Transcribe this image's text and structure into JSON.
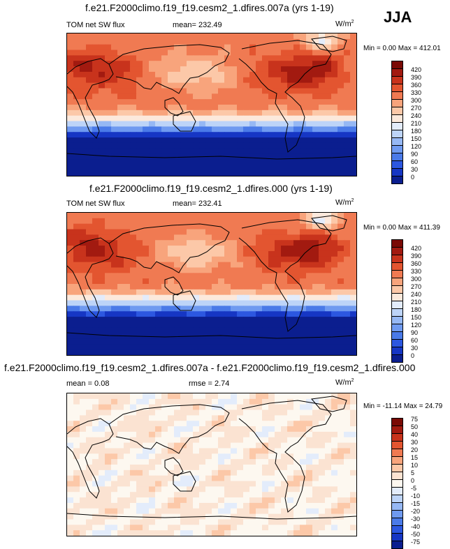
{
  "season": "JJA",
  "panels": [
    {
      "title": "f.e21.F2000climo.f19_f19.cesm2_1.dfires.007a (yrs 1-19)",
      "left": "TOM net SW flux",
      "center": "mean= 232.49",
      "units": "W/m",
      "units_sup": "2",
      "minmax": "Min =   0.00 Max = 412.01"
    },
    {
      "title": "f.e21.F2000climo.f19_f19.cesm2_1.dfires.000 (yrs 1-19)",
      "left": "TOM net SW flux",
      "center": "mean= 232.41",
      "units": "W/m",
      "units_sup": "2",
      "minmax": "Min =   0.00 Max = 411.39"
    },
    {
      "title": "f.e21.F2000climo.f19_f19.cesm2_1.dfires.007a - f.e21.F2000climo.f19_f19.cesm2_1.dfires.000",
      "left": "mean =   0.08",
      "center": "rmse =   2.74",
      "units": "W/m",
      "units_sup": "2",
      "minmax": "Min = -11.14 Max =  24.79"
    }
  ],
  "chart_data": [
    {
      "type": "heatmap",
      "title": "f.e21.F2000climo.f19_f19.cesm2_1.dfires.007a (yrs 1-19)",
      "variable": "TOM net SW flux",
      "units": "W/m2",
      "mean": 232.49,
      "min": 0.0,
      "max": 412.01,
      "colorbar_levels": [
        0,
        30,
        60,
        90,
        120,
        150,
        180,
        210,
        240,
        270,
        300,
        330,
        360,
        390,
        420
      ],
      "colors": [
        "#0b1e8f",
        "#1636c4",
        "#2c57e0",
        "#4a7ae8",
        "#6f9af0",
        "#96b8f4",
        "#bdd4f8",
        "#e3ecfb",
        "#fce9dc",
        "#fcc8a8",
        "#f8a47c",
        "#f07a52",
        "#e35530",
        "#c8331c",
        "#a21a10",
        "#7a0a05"
      ]
    },
    {
      "type": "heatmap",
      "title": "f.e21.F2000climo.f19_f19.cesm2_1.dfires.000 (yrs 1-19)",
      "variable": "TOM net SW flux",
      "units": "W/m2",
      "mean": 232.41,
      "min": 0.0,
      "max": 411.39,
      "colorbar_levels": [
        0,
        30,
        60,
        90,
        120,
        150,
        180,
        210,
        240,
        270,
        300,
        330,
        360,
        390,
        420
      ],
      "colors": [
        "#0b1e8f",
        "#1636c4",
        "#2c57e0",
        "#4a7ae8",
        "#6f9af0",
        "#96b8f4",
        "#bdd4f8",
        "#e3ecfb",
        "#fce9dc",
        "#fcc8a8",
        "#f8a47c",
        "#f07a52",
        "#e35530",
        "#c8331c",
        "#a21a10",
        "#7a0a05"
      ]
    },
    {
      "type": "heatmap",
      "title": "f.e21.F2000climo.f19_f19.cesm2_1.dfires.007a - f.e21.F2000climo.f19_f19.cesm2_1.dfires.000",
      "units": "W/m2",
      "mean": 0.08,
      "rmse": 2.74,
      "min": -11.14,
      "max": 24.79,
      "colorbar_levels": [
        -75,
        -50,
        -40,
        -30,
        -20,
        -15,
        -10,
        -5,
        0,
        5,
        10,
        15,
        20,
        30,
        40,
        50,
        75
      ],
      "colors": [
        "#0b1e8f",
        "#1636c4",
        "#2c57e0",
        "#4a7ae8",
        "#6f9af0",
        "#96b8f4",
        "#bdd4f8",
        "#e3ecfb",
        "#fdf8f0",
        "#fbe3d2",
        "#fcc8a8",
        "#f8a47c",
        "#f07a52",
        "#e35530",
        "#c8331c",
        "#a21a10",
        "#7a0a05"
      ]
    }
  ]
}
